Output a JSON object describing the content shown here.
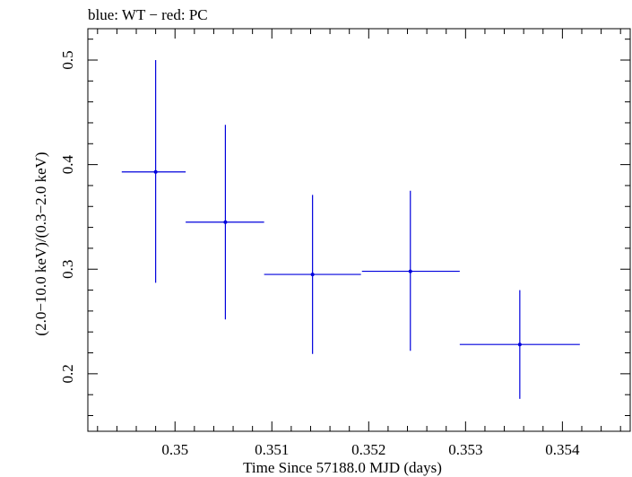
{
  "chart_data": {
    "type": "scatter",
    "title": "blue: WT − red: PC",
    "xlabel": "Time Since 57188.0 MJD (days)",
    "ylabel": "(2.0−10.0 keV)/(0.3−2.0 keV)",
    "xlim": [
      0.3491,
      0.3547
    ],
    "ylim": [
      0.145,
      0.53
    ],
    "xticks": [
      0.35,
      0.351,
      0.352,
      0.353,
      0.354
    ],
    "xtick_labels": [
      "0.35",
      "0.351",
      "0.352",
      "0.353",
      "0.354"
    ],
    "yticks": [
      0.2,
      0.3,
      0.4,
      0.5
    ],
    "ytick_labels": [
      "0.2",
      "0.3",
      "0.4",
      "0.5"
    ],
    "grid": false,
    "series": [
      {
        "name": "WT",
        "color": "#0000dd",
        "points": [
          {
            "x": 0.3498,
            "xerr_low": 0.00035,
            "xerr_high": 0.00031,
            "y": 0.393,
            "yerr_low": 0.106,
            "yerr_high": 0.107
          },
          {
            "x": 0.35052,
            "xerr_low": 0.00041,
            "xerr_high": 0.0004,
            "y": 0.345,
            "yerr_low": 0.093,
            "yerr_high": 0.093
          },
          {
            "x": 0.35142,
            "xerr_low": 0.0005,
            "xerr_high": 0.0005,
            "y": 0.295,
            "yerr_low": 0.076,
            "yerr_high": 0.076
          },
          {
            "x": 0.35243,
            "xerr_low": 0.0005,
            "xerr_high": 0.00051,
            "y": 0.298,
            "yerr_low": 0.076,
            "yerr_high": 0.077
          },
          {
            "x": 0.35356,
            "xerr_low": 0.00062,
            "xerr_high": 0.00062,
            "y": 0.228,
            "yerr_low": 0.052,
            "yerr_high": 0.052
          }
        ]
      }
    ]
  }
}
